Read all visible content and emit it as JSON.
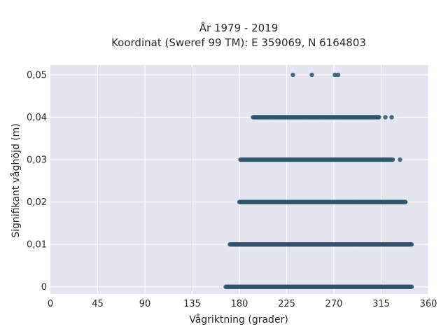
{
  "chart_data": {
    "type": "scatter",
    "title_line1": "År 1979 - 2019",
    "title_line2": "Koordinat (Sweref 99 TM): E 359069, N 6164803",
    "xlabel": "Vågriktning (grader)",
    "ylabel": "Signifikant våghöjd (m)",
    "xlim": [
      0,
      360
    ],
    "ylim": [
      -0.0017,
      0.0523
    ],
    "x_ticks": [
      0,
      45,
      90,
      135,
      180,
      225,
      270,
      315,
      360
    ],
    "x_tick_labels": [
      "0",
      "45",
      "90",
      "135",
      "180",
      "225",
      "270",
      "315",
      "360"
    ],
    "y_ticks": [
      0,
      0.01,
      0.02,
      0.03,
      0.04,
      0.05
    ],
    "y_tick_labels": [
      "0",
      "0,01",
      "0,02",
      "0,03",
      "0,04",
      "0,05"
    ],
    "grid": true,
    "marker_color": "#2e5368",
    "plot_background": "#e5e5ef",
    "bands": [
      {
        "y": 0.0,
        "x_min": 167,
        "x_max": 344,
        "outliers": []
      },
      {
        "y": 0.01,
        "x_min": 171,
        "x_max": 344,
        "outliers": []
      },
      {
        "y": 0.02,
        "x_min": 180,
        "x_max": 338,
        "outliers": [
          338
        ]
      },
      {
        "y": 0.03,
        "x_min": 181,
        "x_max": 326,
        "outliers": [
          333
        ]
      },
      {
        "y": 0.04,
        "x_min": 193,
        "x_max": 313,
        "outliers": [
          319,
          325
        ]
      },
      {
        "y": 0.05,
        "x_min": null,
        "x_max": null,
        "outliers": [
          231,
          249,
          271,
          274
        ]
      }
    ]
  }
}
